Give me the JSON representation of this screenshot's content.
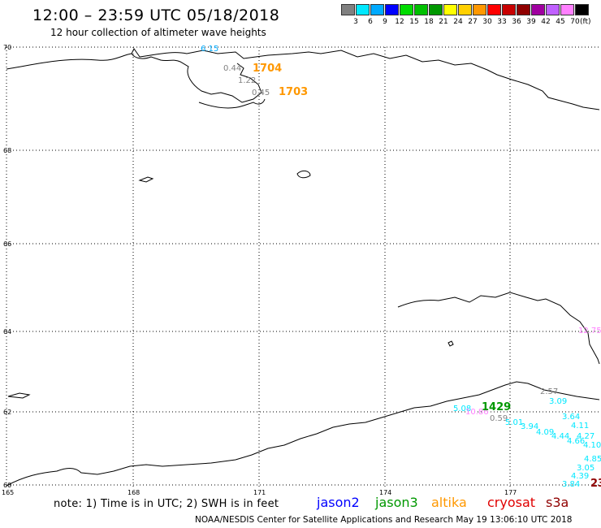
{
  "header": {
    "title": "12:00 – 23:59 UTC 05/18/2018",
    "subtitle": "12 hour collection of altimeter wave heights"
  },
  "legend": {
    "colors": [
      "#808080",
      "#00e8ff",
      "#00aaff",
      "#0000ff",
      "#00dc00",
      "#00c000",
      "#009800",
      "#ffff00",
      "#ffd000",
      "#ff9800",
      "#ff0000",
      "#c80000",
      "#900000",
      "#a000a0",
      "#c060ff",
      "#ff80ff",
      "#000000"
    ],
    "ticks": [
      "3",
      "6",
      "9",
      "12",
      "15",
      "18",
      "21",
      "24",
      "27",
      "30",
      "33",
      "36",
      "39",
      "42",
      "45",
      "70"
    ],
    "unit": "(ft)"
  },
  "axes": {
    "lat_labels": [
      "70",
      "68",
      "66",
      "64",
      "62",
      "60"
    ],
    "lon_labels": [
      "165",
      "168",
      "171",
      "174",
      "177"
    ]
  },
  "observations": [
    {
      "text": "6.15",
      "color": "#00aaff"
    },
    {
      "text": "0.44",
      "color": "#808080"
    },
    {
      "text": "1704",
      "color": "#ff9800"
    },
    {
      "text": "1.22",
      "color": "#808080"
    },
    {
      "text": "0.45",
      "color": "#808080"
    },
    {
      "text": "1703",
      "color": "#ff9800"
    },
    {
      "text": "12.75",
      "color": "#ff80ff"
    },
    {
      "text": "2.57",
      "color": "#808080"
    },
    {
      "text": "3.09",
      "color": "#00e8ff"
    },
    {
      "text": "5.08",
      "color": "#00e8ff"
    },
    {
      "text": "10.86",
      "color": "#ff80ff"
    },
    {
      "text": "1429",
      "color": "#009800"
    },
    {
      "text": "0.59",
      "color": "#808080"
    },
    {
      "text": "3.64",
      "color": "#00e8ff"
    },
    {
      "text": "5.01",
      "color": "#00e8ff"
    },
    {
      "text": "3.94",
      "color": "#00e8ff"
    },
    {
      "text": "4.11",
      "color": "#00e8ff"
    },
    {
      "text": "4.09",
      "color": "#00e8ff"
    },
    {
      "text": "4.27",
      "color": "#00e8ff"
    },
    {
      "text": "4.44",
      "color": "#00e8ff"
    },
    {
      "text": "4.66",
      "color": "#00e8ff"
    },
    {
      "text": "4.10",
      "color": "#00e8ff"
    },
    {
      "text": "4.85",
      "color": "#00e8ff"
    },
    {
      "text": "3.05",
      "color": "#00e8ff"
    },
    {
      "text": "4.39",
      "color": "#00e8ff"
    },
    {
      "text": "3.84",
      "color": "#00e8ff"
    },
    {
      "text": "23",
      "color": "#900000"
    }
  ],
  "note": "note: 1) Time is in UTC; 2) SWH is in feet",
  "satellites": [
    {
      "name": "jason2",
      "color": "#0000ff"
    },
    {
      "name": "jason3",
      "color": "#009800"
    },
    {
      "name": "altika",
      "color": "#ff9800"
    },
    {
      "name": "cryosat",
      "color": "#e00000"
    },
    {
      "name": "s3a",
      "color": "#900000"
    }
  ],
  "footer": "NOAA/NESDIS Center for Satellite Applications and Research    May 19 13:06:10 UTC 2018"
}
